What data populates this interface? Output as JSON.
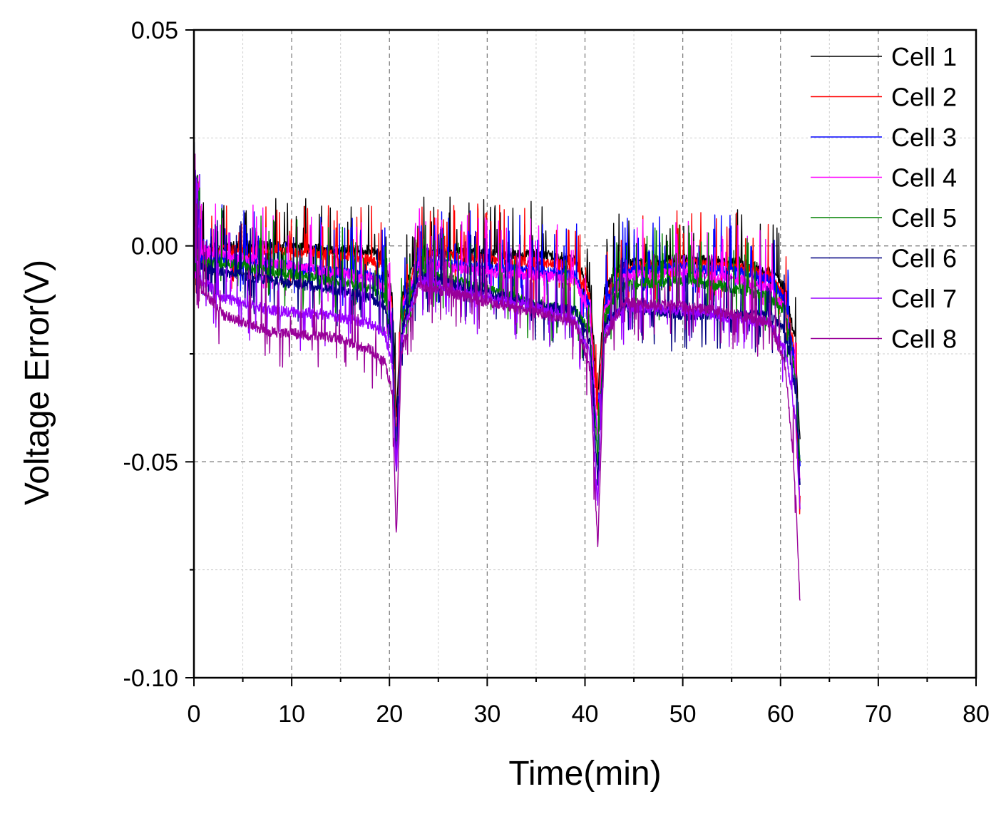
{
  "chart_data": {
    "type": "line",
    "title": "",
    "xlabel": "Time(min)",
    "ylabel": "Voltage Error(V)",
    "xlim": [
      0,
      80
    ],
    "ylim": [
      -0.1,
      0.05
    ],
    "x_ticks": [
      0,
      10,
      20,
      30,
      40,
      50,
      60,
      70,
      80
    ],
    "x_tick_labels": [
      "0",
      "10",
      "20",
      "30",
      "40",
      "50",
      "60",
      "70",
      "80"
    ],
    "y_ticks": [
      -0.1,
      -0.05,
      0.0,
      0.05
    ],
    "y_tick_labels": [
      "-0.10",
      "-0.05",
      "0.00",
      "0.05"
    ],
    "grid": true,
    "legend_position": "top-right",
    "series": [
      {
        "name": "Cell 1",
        "color": "#000000",
        "base": [
          [
            0,
            -0.003
          ],
          [
            1,
            -0.001
          ],
          [
            3,
            0.0
          ],
          [
            8,
            0.0
          ],
          [
            14,
            -0.001
          ],
          [
            18,
            -0.001
          ],
          [
            19.5,
            -0.003
          ],
          [
            20.3,
            -0.012
          ],
          [
            20.7,
            -0.04
          ],
          [
            21.2,
            -0.012
          ],
          [
            23,
            -0.001
          ],
          [
            30,
            -0.002
          ],
          [
            36,
            -0.002
          ],
          [
            39,
            -0.003
          ],
          [
            40.5,
            -0.01
          ],
          [
            41.3,
            -0.035
          ],
          [
            42,
            -0.01
          ],
          [
            44,
            -0.004
          ],
          [
            50,
            -0.003
          ],
          [
            56,
            -0.004
          ],
          [
            59,
            -0.006
          ],
          [
            60.5,
            -0.01
          ],
          [
            61.5,
            -0.022
          ],
          [
            62,
            -0.045
          ]
        ]
      },
      {
        "name": "Cell 2",
        "color": "#ff0000",
        "base": [
          [
            0,
            -0.003
          ],
          [
            1,
            -0.002
          ],
          [
            3,
            -0.001
          ],
          [
            8,
            -0.001
          ],
          [
            14,
            -0.002
          ],
          [
            18,
            -0.003
          ],
          [
            19.5,
            -0.005
          ],
          [
            20.3,
            -0.014
          ],
          [
            20.7,
            -0.045
          ],
          [
            21.2,
            -0.014
          ],
          [
            23,
            -0.002
          ],
          [
            30,
            -0.003
          ],
          [
            36,
            -0.004
          ],
          [
            39,
            -0.004
          ],
          [
            40.5,
            -0.012
          ],
          [
            41.3,
            -0.04
          ],
          [
            42,
            -0.012
          ],
          [
            44,
            -0.005
          ],
          [
            50,
            -0.004
          ],
          [
            56,
            -0.005
          ],
          [
            59,
            -0.007
          ],
          [
            60.5,
            -0.012
          ],
          [
            61.5,
            -0.025
          ],
          [
            62,
            -0.065
          ]
        ]
      },
      {
        "name": "Cell 3",
        "color": "#0000ff",
        "base": [
          [
            0,
            -0.003
          ],
          [
            1,
            -0.003
          ],
          [
            3,
            -0.003
          ],
          [
            8,
            -0.004
          ],
          [
            14,
            -0.006
          ],
          [
            18,
            -0.007
          ],
          [
            19.5,
            -0.008
          ],
          [
            20.3,
            -0.018
          ],
          [
            20.7,
            -0.048
          ],
          [
            21.2,
            -0.016
          ],
          [
            23,
            -0.004
          ],
          [
            30,
            -0.005
          ],
          [
            36,
            -0.006
          ],
          [
            39,
            -0.007
          ],
          [
            40.5,
            -0.014
          ],
          [
            41.3,
            -0.045
          ],
          [
            42,
            -0.014
          ],
          [
            44,
            -0.006
          ],
          [
            50,
            -0.005
          ],
          [
            56,
            -0.006
          ],
          [
            59,
            -0.008
          ],
          [
            60.5,
            -0.013
          ],
          [
            61.5,
            -0.027
          ],
          [
            62,
            -0.05
          ]
        ]
      },
      {
        "name": "Cell 4",
        "color": "#ff00ff",
        "base": [
          [
            0,
            -0.003
          ],
          [
            1,
            -0.001
          ],
          [
            3,
            -0.002
          ],
          [
            8,
            -0.004
          ],
          [
            14,
            -0.006
          ],
          [
            18,
            -0.007
          ],
          [
            19.5,
            -0.01
          ],
          [
            20.3,
            -0.02
          ],
          [
            20.7,
            -0.05
          ],
          [
            21.2,
            -0.015
          ],
          [
            23,
            -0.004
          ],
          [
            30,
            -0.006
          ],
          [
            36,
            -0.007
          ],
          [
            39,
            -0.008
          ],
          [
            40.5,
            -0.016
          ],
          [
            41.3,
            -0.045
          ],
          [
            42,
            -0.015
          ],
          [
            44,
            -0.007
          ],
          [
            50,
            -0.006
          ],
          [
            56,
            -0.008
          ],
          [
            59,
            -0.01
          ],
          [
            60.5,
            -0.015
          ],
          [
            61.5,
            -0.03
          ],
          [
            62,
            -0.055
          ]
        ]
      },
      {
        "name": "Cell 5",
        "color": "#008000",
        "base": [
          [
            0,
            -0.003
          ],
          [
            1,
            -0.004
          ],
          [
            3,
            -0.004
          ],
          [
            8,
            -0.006
          ],
          [
            14,
            -0.008
          ],
          [
            18,
            -0.01
          ],
          [
            19.5,
            -0.012
          ],
          [
            20.3,
            -0.022
          ],
          [
            20.7,
            -0.05
          ],
          [
            21.2,
            -0.018
          ],
          [
            23,
            -0.006
          ],
          [
            30,
            -0.01
          ],
          [
            36,
            -0.014
          ],
          [
            39,
            -0.015
          ],
          [
            40.5,
            -0.02
          ],
          [
            41.3,
            -0.05
          ],
          [
            42,
            -0.016
          ],
          [
            44,
            -0.009
          ],
          [
            50,
            -0.008
          ],
          [
            56,
            -0.01
          ],
          [
            59,
            -0.012
          ],
          [
            60.5,
            -0.015
          ],
          [
            61.5,
            -0.03
          ],
          [
            62,
            -0.05
          ]
        ]
      },
      {
        "name": "Cell 6",
        "color": "#000080",
        "base": [
          [
            0,
            -0.003
          ],
          [
            0.8,
            -0.005
          ],
          [
            3,
            -0.006
          ],
          [
            8,
            -0.008
          ],
          [
            14,
            -0.01
          ],
          [
            18,
            -0.012
          ],
          [
            19.5,
            -0.014
          ],
          [
            20.3,
            -0.024
          ],
          [
            20.7,
            -0.052
          ],
          [
            21.2,
            -0.02
          ],
          [
            23,
            -0.007
          ],
          [
            30,
            -0.011
          ],
          [
            36,
            -0.014
          ],
          [
            39,
            -0.015
          ],
          [
            40.5,
            -0.022
          ],
          [
            41.3,
            -0.055
          ],
          [
            42,
            -0.018
          ],
          [
            44,
            -0.014
          ],
          [
            50,
            -0.016
          ],
          [
            56,
            -0.016
          ],
          [
            59,
            -0.016
          ],
          [
            60.5,
            -0.02
          ],
          [
            61.5,
            -0.033
          ],
          [
            62,
            -0.055
          ]
        ]
      },
      {
        "name": "Cell 7",
        "color": "#9900ff",
        "base": [
          [
            0,
            -0.003
          ],
          [
            0.8,
            -0.008
          ],
          [
            3,
            -0.012
          ],
          [
            8,
            -0.015
          ],
          [
            14,
            -0.016
          ],
          [
            18,
            -0.018
          ],
          [
            19.5,
            -0.02
          ],
          [
            20.3,
            -0.028
          ],
          [
            20.7,
            -0.055
          ],
          [
            21.2,
            -0.022
          ],
          [
            23,
            -0.008
          ],
          [
            30,
            -0.012
          ],
          [
            36,
            -0.015
          ],
          [
            39,
            -0.017
          ],
          [
            40.5,
            -0.025
          ],
          [
            41.3,
            -0.06
          ],
          [
            42,
            -0.02
          ],
          [
            44,
            -0.014
          ],
          [
            50,
            -0.015
          ],
          [
            56,
            -0.017
          ],
          [
            59,
            -0.018
          ],
          [
            60.5,
            -0.024
          ],
          [
            61.5,
            -0.04
          ],
          [
            62,
            -0.06
          ]
        ]
      },
      {
        "name": "Cell 8",
        "color": "#990099",
        "base": [
          [
            0,
            -0.003
          ],
          [
            0.8,
            -0.01
          ],
          [
            3,
            -0.016
          ],
          [
            8,
            -0.02
          ],
          [
            14,
            -0.021
          ],
          [
            18,
            -0.024
          ],
          [
            19.5,
            -0.027
          ],
          [
            20.3,
            -0.034
          ],
          [
            20.7,
            -0.068
          ],
          [
            21.2,
            -0.025
          ],
          [
            23,
            -0.009
          ],
          [
            30,
            -0.013
          ],
          [
            36,
            -0.016
          ],
          [
            39,
            -0.018
          ],
          [
            40.5,
            -0.028
          ],
          [
            41.3,
            -0.07
          ],
          [
            42,
            -0.022
          ],
          [
            44,
            -0.013
          ],
          [
            50,
            -0.014
          ],
          [
            56,
            -0.016
          ],
          [
            59,
            -0.018
          ],
          [
            60.5,
            -0.028
          ],
          [
            61.5,
            -0.055
          ],
          [
            62,
            -0.083
          ]
        ]
      }
    ]
  }
}
